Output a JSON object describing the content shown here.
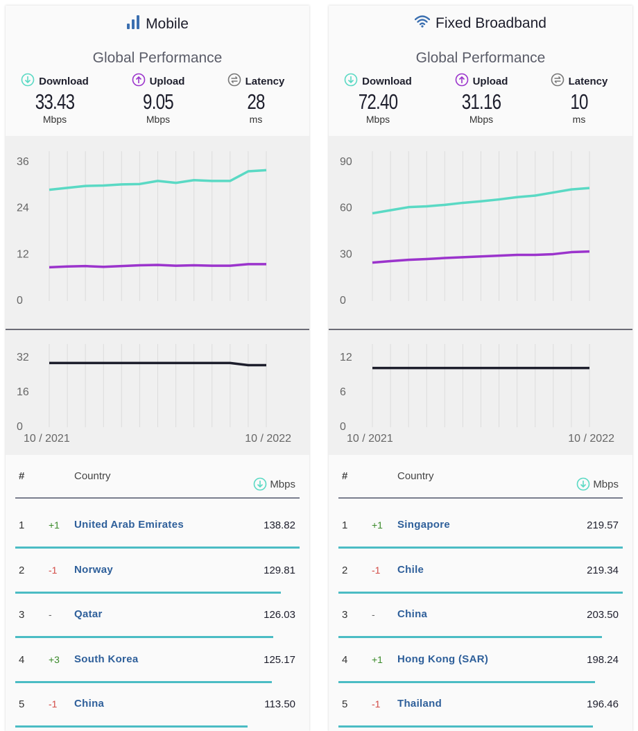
{
  "colors": {
    "download": "#5ad9c4",
    "upload": "#9b34cc",
    "latency": "#1d1e2c",
    "bar": "#4bbcc4"
  },
  "panels": [
    {
      "title": "Mobile",
      "title_icon": "signal-bars-icon",
      "subtitle": "Global Performance",
      "metrics": [
        {
          "label": "Download",
          "icon": "download-arrow-icon",
          "value": "33.43",
          "unit": "Mbps"
        },
        {
          "label": "Upload",
          "icon": "upload-arrow-icon",
          "value": "9.05",
          "unit": "Mbps"
        },
        {
          "label": "Latency",
          "icon": "latency-icon",
          "value": "28",
          "unit": "ms"
        }
      ],
      "chart_data": {
        "type": "line",
        "speed_ticks": [
          "36",
          "24",
          "12",
          "0"
        ],
        "speed_ylim": [
          0,
          36
        ],
        "download": [
          28.5,
          29,
          29.5,
          29.6,
          29.9,
          30,
          30.8,
          30.3,
          31,
          30.8,
          30.8,
          33.3,
          33.6
        ],
        "upload": [
          8.4,
          8.6,
          8.7,
          8.5,
          8.7,
          8.9,
          9.0,
          8.8,
          8.9,
          8.8,
          8.8,
          9.2,
          9.2
        ],
        "latency_ticks": [
          "32",
          "16",
          "0"
        ],
        "latency_ylim": [
          0,
          32
        ],
        "latency": [
          29,
          29,
          29,
          29,
          29,
          29,
          29,
          29,
          29,
          29,
          29,
          28,
          28
        ],
        "date_start": "10 / 2021",
        "date_end": "10 / 2022"
      },
      "table": {
        "col_rank": "#",
        "col_country": "Country",
        "col_speed": "Mbps",
        "rows": [
          {
            "rank": "1",
            "change": "+1",
            "country": "United Arab Emirates",
            "value": "138.82",
            "share": 1.0
          },
          {
            "rank": "2",
            "change": "-1",
            "country": "Norway",
            "value": "129.81",
            "share": 0.935
          },
          {
            "rank": "3",
            "change": "-",
            "country": "Qatar",
            "value": "126.03",
            "share": 0.908
          },
          {
            "rank": "4",
            "change": "+3",
            "country": "South Korea",
            "value": "125.17",
            "share": 0.902
          },
          {
            "rank": "5",
            "change": "-1",
            "country": "China",
            "value": "113.50",
            "share": 0.818
          }
        ]
      }
    },
    {
      "title": "Fixed Broadband",
      "title_icon": "wifi-icon",
      "subtitle": "Global Performance",
      "metrics": [
        {
          "label": "Download",
          "icon": "download-arrow-icon",
          "value": "72.40",
          "unit": "Mbps"
        },
        {
          "label": "Upload",
          "icon": "upload-arrow-icon",
          "value": "31.16",
          "unit": "Mbps"
        },
        {
          "label": "Latency",
          "icon": "latency-icon",
          "value": "10",
          "unit": "ms"
        }
      ],
      "chart_data": {
        "type": "line",
        "speed_ticks": [
          "90",
          "60",
          "30",
          "0"
        ],
        "speed_ylim": [
          0,
          90
        ],
        "download": [
          56,
          58,
          60,
          60.5,
          61.5,
          62.8,
          63.8,
          65,
          66.5,
          67.5,
          69.5,
          71.5,
          72.4
        ],
        "upload": [
          24,
          25,
          25.8,
          26.3,
          27,
          27.5,
          28,
          28.5,
          29,
          29,
          29.5,
          30.8,
          31.2
        ],
        "latency_ticks": [
          "12",
          "6",
          "0"
        ],
        "latency_ylim": [
          0,
          12
        ],
        "latency": [
          10,
          10,
          10,
          10,
          10,
          10,
          10,
          10,
          10,
          10,
          10,
          10,
          10
        ],
        "date_start": "10 / 2021",
        "date_end": "10 / 2022"
      },
      "table": {
        "col_rank": "#",
        "col_country": "Country",
        "col_speed": "Mbps",
        "rows": [
          {
            "rank": "1",
            "change": "+1",
            "country": "Singapore",
            "value": "219.57",
            "share": 1.0
          },
          {
            "rank": "2",
            "change": "-1",
            "country": "Chile",
            "value": "219.34",
            "share": 0.999
          },
          {
            "rank": "3",
            "change": "-",
            "country": "China",
            "value": "203.50",
            "share": 0.927
          },
          {
            "rank": "4",
            "change": "+1",
            "country": "Hong Kong (SAR)",
            "value": "198.24",
            "share": 0.903
          },
          {
            "rank": "5",
            "change": "-1",
            "country": "Thailand",
            "value": "196.46",
            "share": 0.895
          }
        ]
      }
    }
  ]
}
